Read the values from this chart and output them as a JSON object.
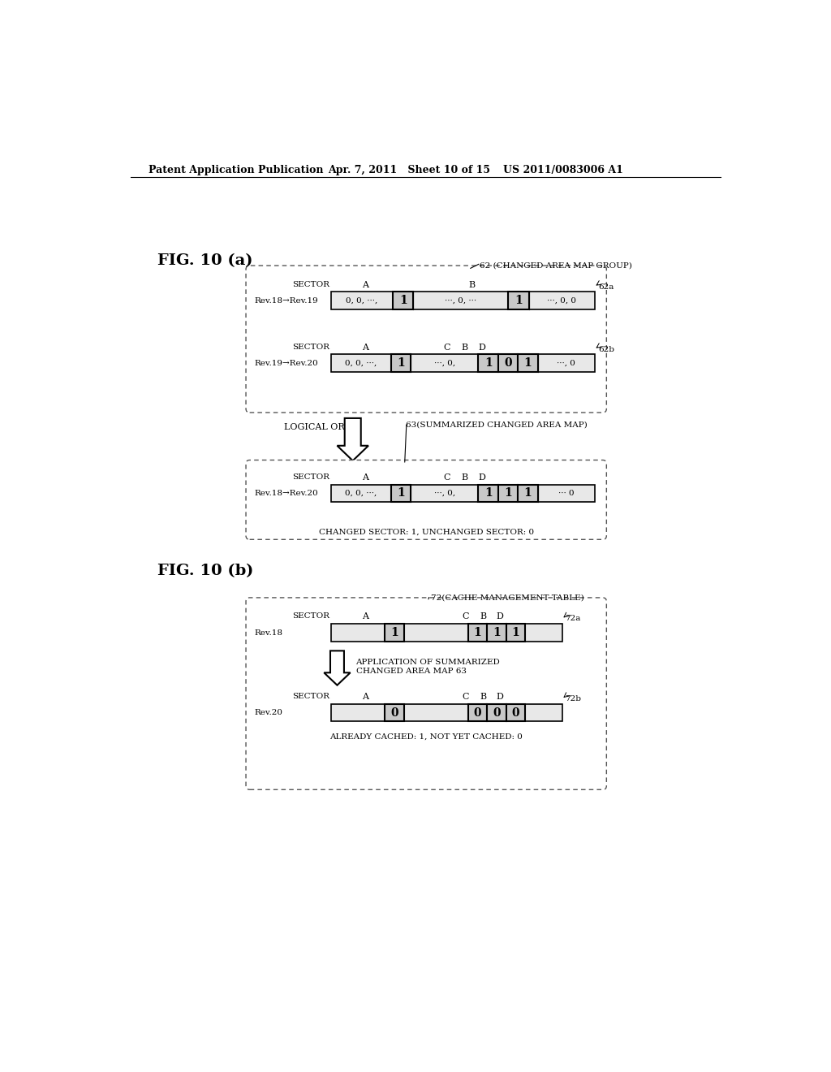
{
  "header_left": "Patent Application Publication",
  "header_mid": "Apr. 7, 2011   Sheet 10 of 15",
  "header_right": "US 2011/0083006 A1",
  "fig_a_label": "FIG. 10 (a)",
  "fig_b_label": "FIG. 10 (b)",
  "label_62": "62 (CHANGED AREA MAP GROUP)",
  "label_62a": "62a",
  "label_62b": "62b",
  "label_63": "63(SUMMARIZED CHANGED AREA MAP)",
  "label_72": "72(CACHE MANAGEMENT TABLE)",
  "label_72a": "72a",
  "label_72b": "72b",
  "logical_or": "LOGICAL OR",
  "changed_sector_note": "CHANGED SECTOR: 1, UNCHANGED SECTOR: 0",
  "application_note1": "APPLICATION OF SUMMARIZED",
  "application_note2": "CHANGED AREA MAP 63",
  "already_cached_note": "ALREADY CACHED: 1, NOT YET CACHED: 0",
  "rev18_19": "Rev.18→Rev.19",
  "rev19_20": "Rev.19→Rev.20",
  "rev18_20": "Rev.18→Rev.20",
  "rev18": "Rev.18",
  "rev20": "Rev.20",
  "bg_color": "#ffffff"
}
